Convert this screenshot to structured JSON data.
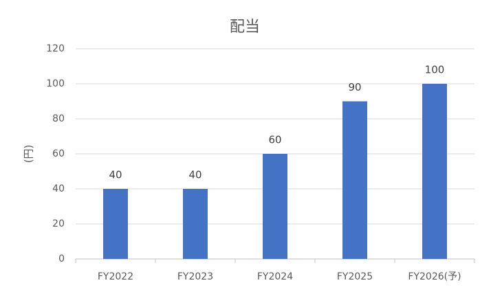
{
  "chart_data": {
    "type": "bar",
    "title": "配当",
    "y_label": "(円)",
    "categories": [
      "FY2022",
      "FY2023",
      "FY2024",
      "FY2025",
      "FY2026(予)"
    ],
    "values": [
      40,
      40,
      60,
      90,
      100
    ],
    "color": "#4472c4",
    "ylim": [
      0,
      120
    ],
    "yticks": [
      0,
      20,
      40,
      60,
      80,
      100,
      120
    ],
    "grid": true
  }
}
